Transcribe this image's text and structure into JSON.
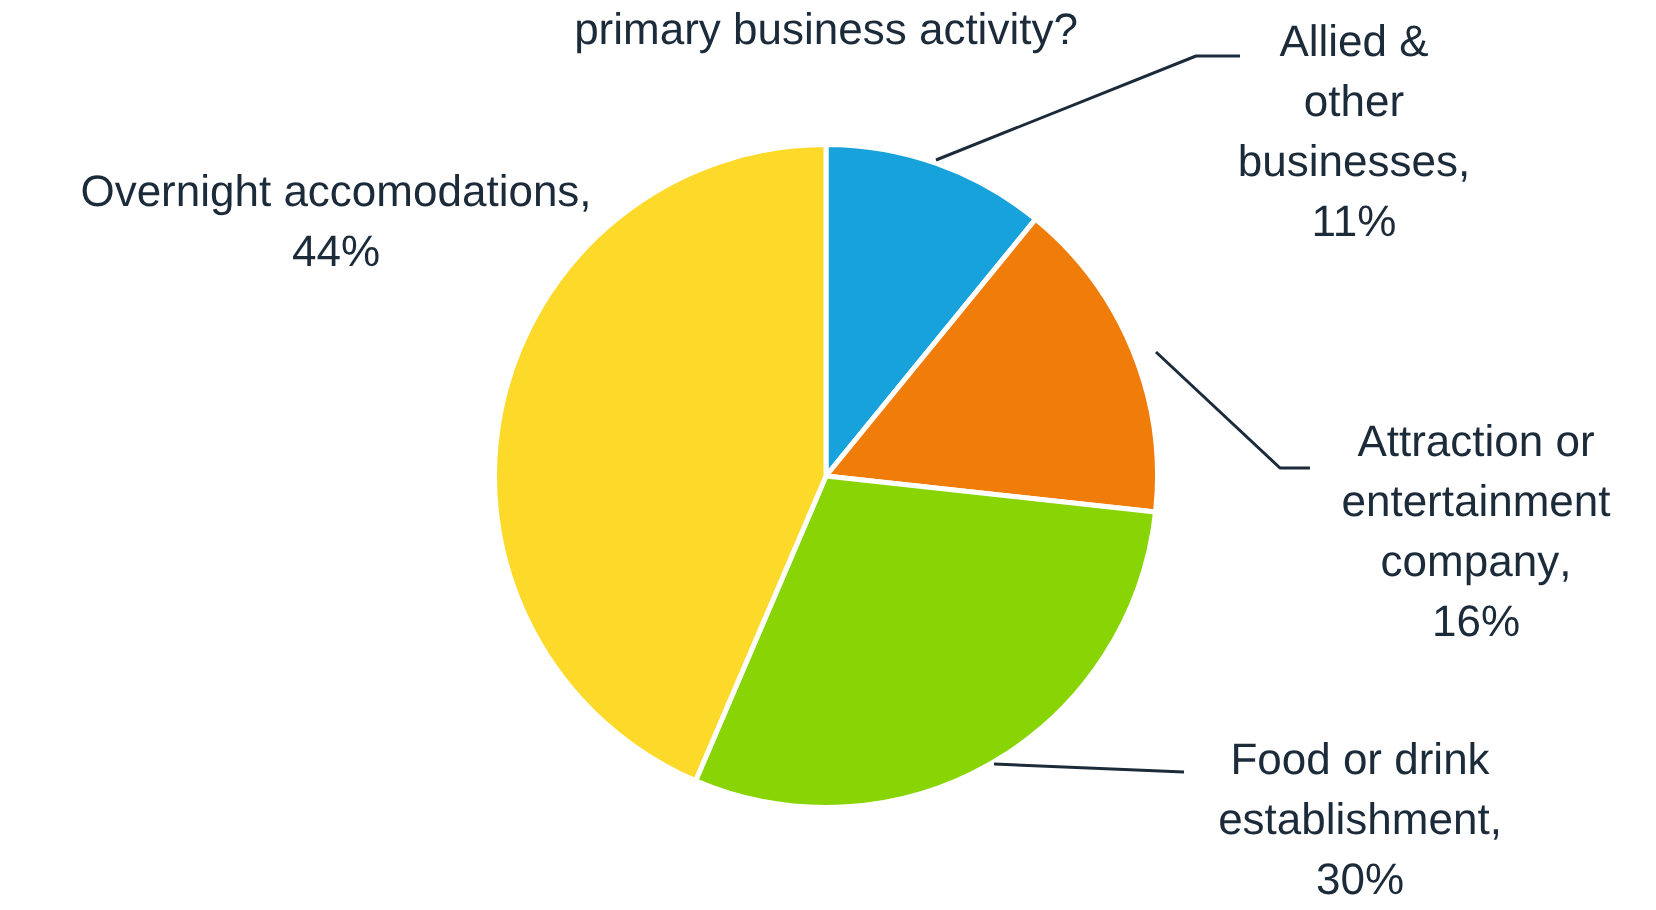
{
  "chart_data": {
    "type": "pie",
    "title": "primary business activity?",
    "categories": [
      "Allied & other businesses",
      "Attraction or entertainment company",
      "Food or drink establishment",
      "Overnight accomodations"
    ],
    "values": [
      11,
      16,
      30,
      44
    ],
    "value_labels": [
      ", 11%",
      ", 16%",
      ", 30%",
      ", 44%"
    ],
    "colors": [
      "#17a2dc",
      "#f07c0a",
      "#88d404",
      "#fdd92a"
    ],
    "legend": false
  }
}
